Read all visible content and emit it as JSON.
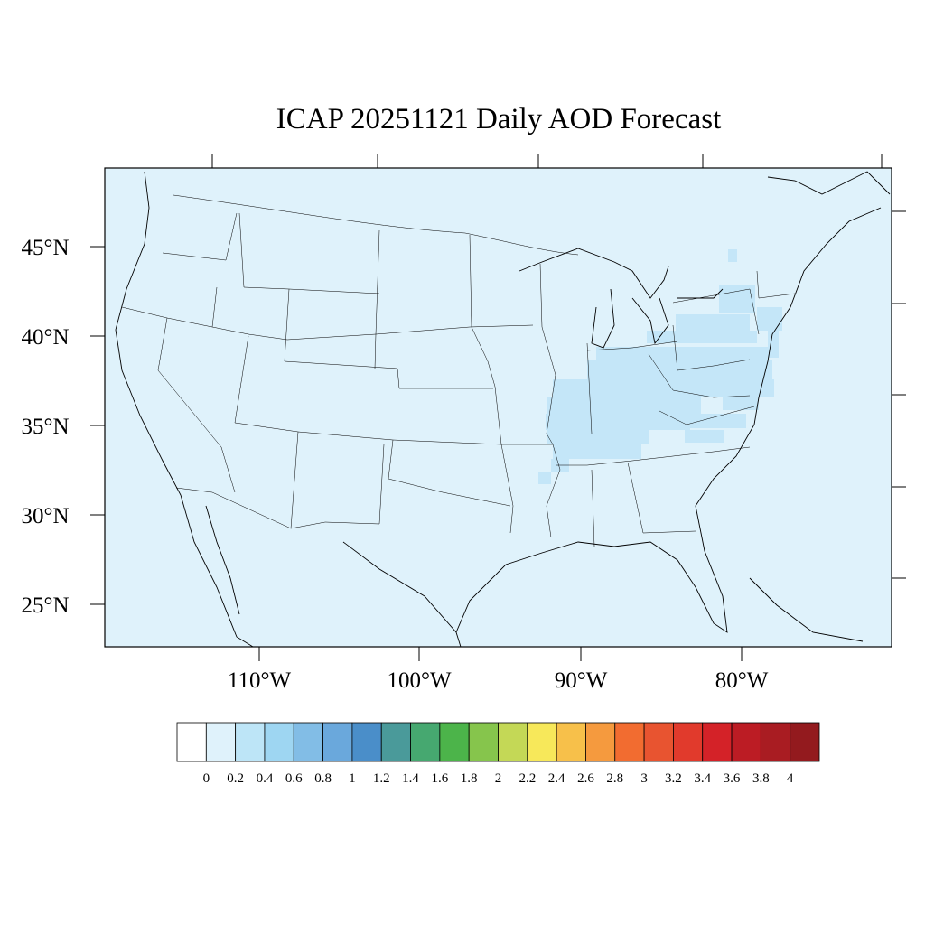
{
  "title": "ICAP 20251121 Daily AOD Forecast",
  "map": {
    "region": "contiguous United States",
    "background_color": "#dff2fb",
    "lat_labels": [
      "45°N",
      "40°N",
      "35°N",
      "30°N",
      "25°N"
    ],
    "lon_labels": [
      "110°W",
      "100°W",
      "90°W",
      "80°W"
    ]
  },
  "aod_field": {
    "background_value_range": "0–0.2",
    "elevated_value_range": "0.2–0.4",
    "elevated_color": "#c4e6f8",
    "elevated_regions": [
      "Missouri",
      "Illinois",
      "Indiana",
      "Ohio",
      "Kentucky",
      "Tennessee",
      "West Virginia",
      "Virginia",
      "North Carolina",
      "Pennsylvania",
      "New York",
      "Maryland",
      "Delaware",
      "New Jersey"
    ]
  },
  "colorbar": {
    "labels": [
      "0",
      "0.2",
      "0.4",
      "0.6",
      "0.8",
      "1",
      "1.2",
      "1.4",
      "1.6",
      "1.8",
      "2",
      "2.2",
      "2.4",
      "2.6",
      "2.8",
      "3",
      "3.2",
      "3.4",
      "3.6",
      "3.8",
      "4"
    ],
    "colors": [
      "#ffffff",
      "#dff2fb",
      "#bde5f7",
      "#9ed6f2",
      "#82bde6",
      "#6aa8dc",
      "#4a8ec9",
      "#4a9a9a",
      "#46a870",
      "#4cb44a",
      "#86c54c",
      "#c4d856",
      "#f7e85a",
      "#f7c04a",
      "#f59a3e",
      "#f26c30",
      "#e85430",
      "#e13a2c",
      "#d42228",
      "#bc1c24",
      "#a91c22",
      "#931a1e"
    ]
  }
}
